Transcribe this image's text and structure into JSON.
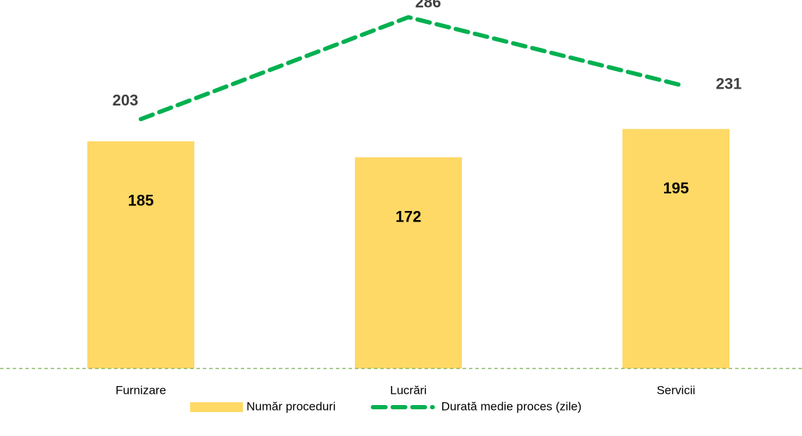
{
  "chart_data": {
    "type": "bar",
    "categories": [
      "Furnizare",
      "Lucrări",
      "Servicii"
    ],
    "series": [
      {
        "name": "Număr proceduri",
        "type": "bar",
        "color": "#ffd966",
        "values": [
          185,
          172,
          195
        ]
      },
      {
        "name": "Durată medie proces (zile)",
        "type": "line",
        "color": "#00b050",
        "values": [
          203,
          286,
          231
        ]
      }
    ],
    "ylim": [
      0,
      300
    ],
    "legend": "bottom"
  }
}
